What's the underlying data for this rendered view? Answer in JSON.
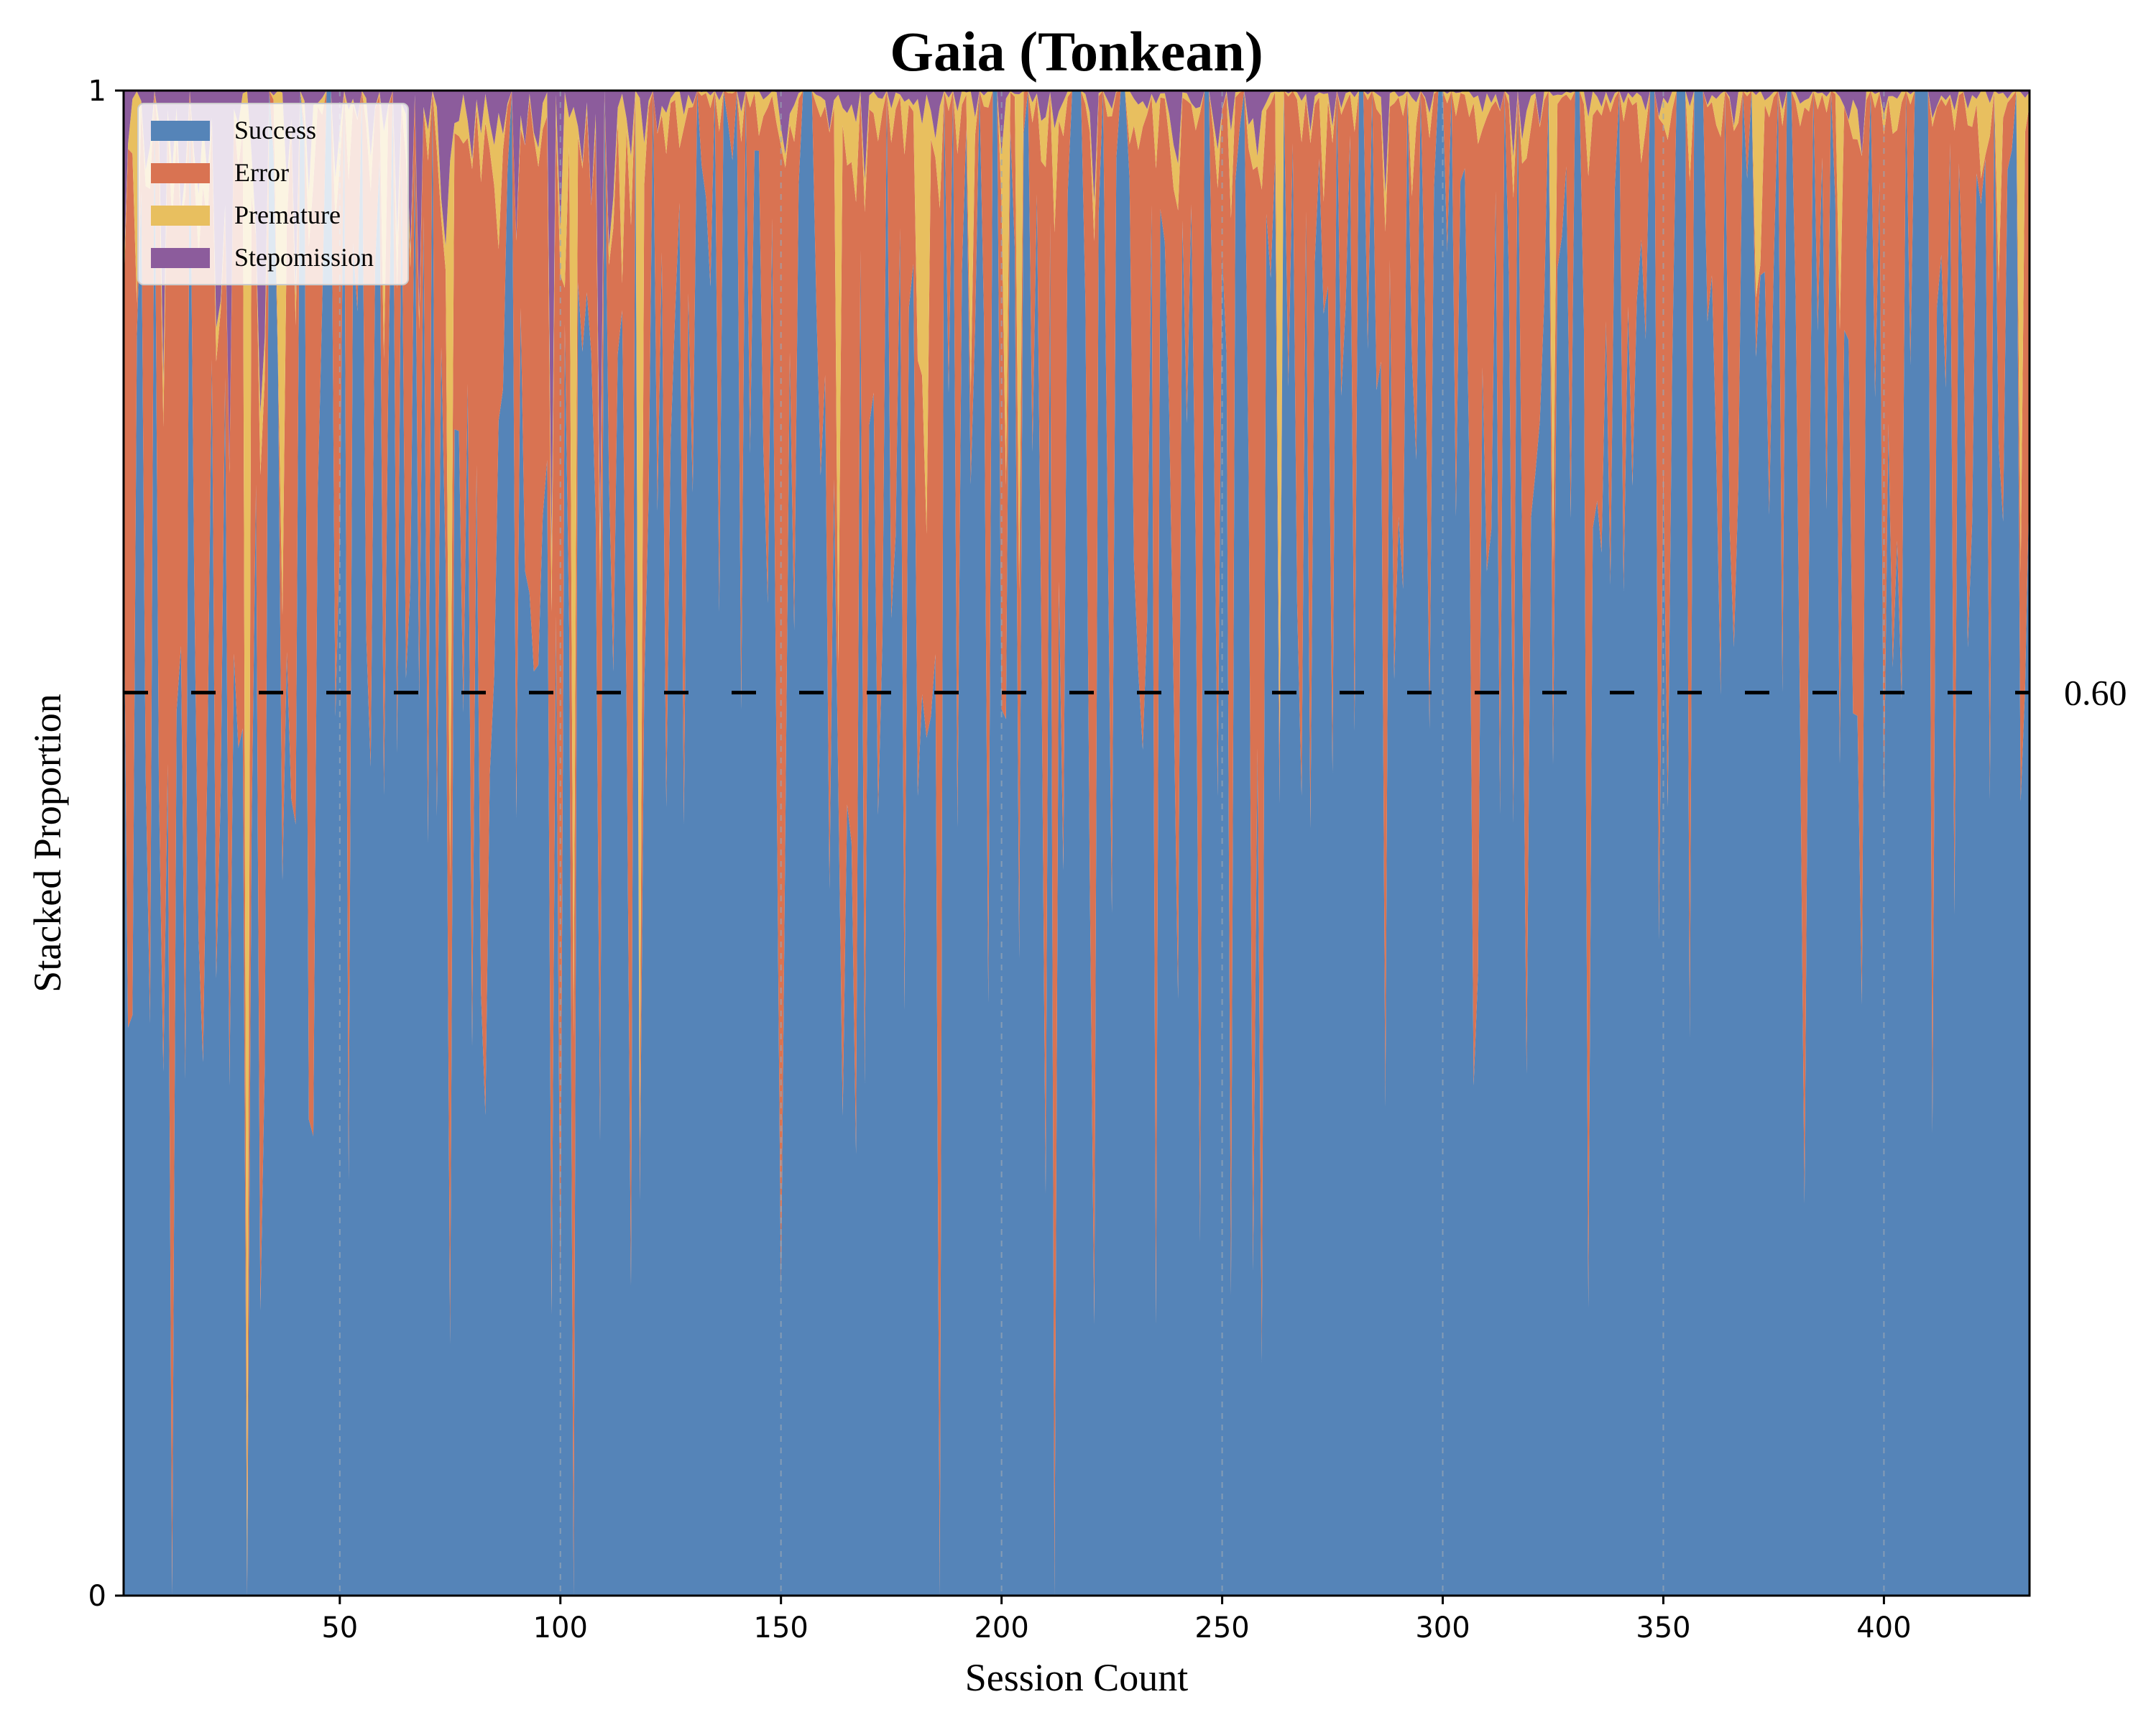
{
  "chart_data": {
    "type": "area",
    "title": "Gaia (Tonkean)",
    "xlabel": "Session Count",
    "ylabel": "Stacked Proportion",
    "xlim": [
      1,
      433
    ],
    "ylim": [
      0,
      1
    ],
    "x_ticks": [
      50,
      100,
      150,
      200,
      250,
      300,
      350,
      400
    ],
    "y_ticks": [
      {
        "value": 0,
        "label": "0"
      },
      {
        "value": 1,
        "label": "1"
      }
    ],
    "reference_line": {
      "value": 0.6,
      "label": "0.60",
      "style": "dashed"
    },
    "vertical_gridlines": [
      50,
      100,
      150,
      200,
      250,
      300,
      350,
      400
    ],
    "legend": {
      "position": "upper-left"
    },
    "series": [
      {
        "name": "Success",
        "color": "#5584b8",
        "mean": 0.76
      },
      {
        "name": "Error",
        "color": "#d97352",
        "mean": 0.2
      },
      {
        "name": "Premature",
        "color": "#e8bf5f",
        "mean": 0.015
      },
      {
        "name": "Stepomission",
        "color": "#8c5c9c",
        "mean": 0.025
      }
    ],
    "n_sessions": 433,
    "generator_note_seed": 7
  }
}
